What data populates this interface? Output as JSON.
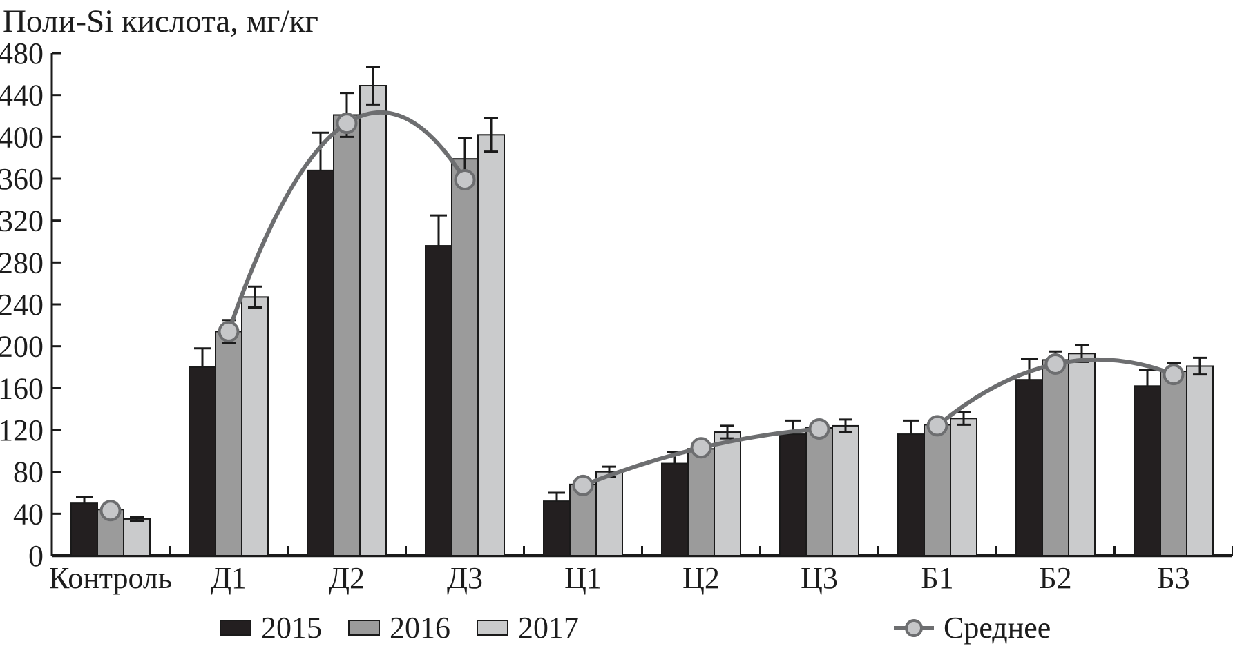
{
  "chart_data": {
    "type": "bar",
    "title": "Поли-Si кислота, мг/кг",
    "ylabel": "Поли-Si кислота, мг/кг",
    "xlabel": "",
    "categories": [
      "Контроль",
      "Д1",
      "Д2",
      "Д3",
      "Ц1",
      "Ц2",
      "Ц3",
      "Б1",
      "Б2",
      "Б3"
    ],
    "series": [
      {
        "name": "2015",
        "color_key": "s2015",
        "error_style": "upper",
        "values": [
          50,
          180,
          368,
          296,
          52,
          88,
          116,
          116,
          168,
          162
        ],
        "errors": [
          6,
          18,
          36,
          29,
          8,
          11,
          13,
          13,
          20,
          15
        ]
      },
      {
        "name": "2016",
        "color_key": "s2016",
        "error_style": "symmetric",
        "values": [
          44,
          214,
          421,
          379,
          68,
          102,
          122,
          125,
          187,
          176
        ],
        "errors": [
          4,
          11,
          21,
          20,
          5,
          6,
          5,
          4,
          8,
          8
        ]
      },
      {
        "name": "2017",
        "color_key": "s2017",
        "error_style": "symmetric",
        "values": [
          35,
          247,
          449,
          402,
          80,
          118,
          124,
          131,
          193,
          181
        ],
        "errors": [
          2,
          10,
          18,
          16,
          5,
          6,
          6,
          6,
          8,
          8
        ]
      }
    ],
    "mean_series": {
      "name": "Среднее",
      "values": [
        43,
        214,
        413,
        359,
        67,
        103,
        121,
        124,
        183,
        173
      ],
      "line_blocks": [
        [
          1,
          2,
          3
        ],
        [
          4,
          5,
          6
        ],
        [
          7,
          8,
          9
        ]
      ],
      "isolated_markers": [
        0
      ]
    },
    "ylim": [
      0,
      480
    ],
    "ytick_step": 40,
    "grid": false,
    "legend_position": "bottom",
    "colors": {
      "s2015": "#231f20",
      "s2016": "#9b9b9b",
      "s2017": "#cacbcc",
      "outline": "#1a1a1a",
      "axis": "#1a1a1a",
      "mean_line": "#6d6e70",
      "marker_fill": "#c6c7c9",
      "text": "#1c1c1c"
    }
  }
}
